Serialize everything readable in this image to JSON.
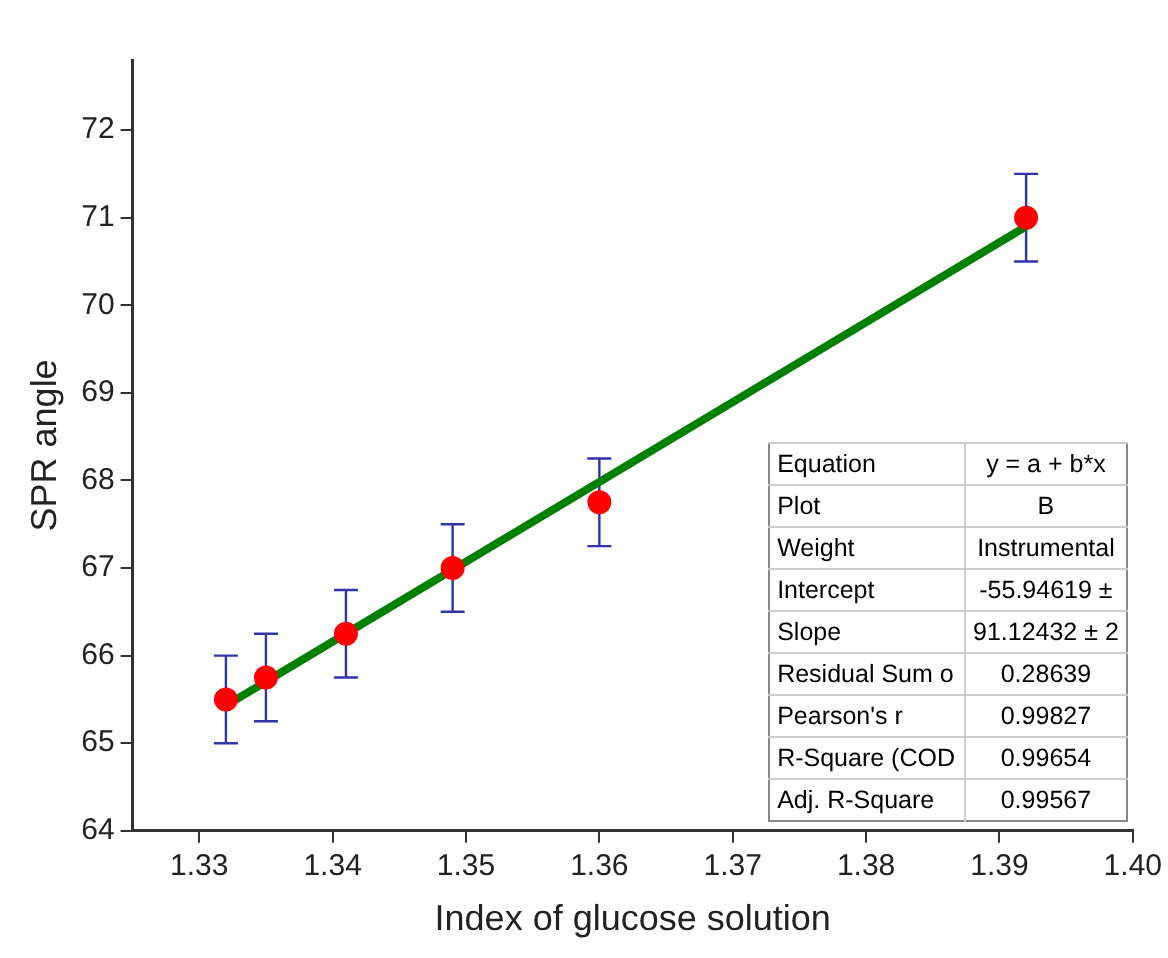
{
  "chart_data": {
    "type": "scatter",
    "xlabel": "Index of glucose solution",
    "ylabel": "SPR angle",
    "x": [
      1.332,
      1.335,
      1.341,
      1.349,
      1.36,
      1.392
    ],
    "series": [
      {
        "color": "#ff0000",
        "values": [
          65.5,
          65.75,
          66.25,
          67.0,
          67.75,
          71.0
        ],
        "errors": [
          0.5,
          0.5,
          0.5,
          0.5,
          0.5,
          0.5
        ]
      },
      {
        "type": "line",
        "marker": "none",
        "color": "#008000",
        "x": [
          1.332,
          1.392
        ],
        "values": [
          65.43,
          70.9
        ]
      }
    ],
    "xlim": [
      1.325,
      1.4
    ],
    "xticks": [
      1.33,
      1.34,
      1.35,
      1.36,
      1.37,
      1.38,
      1.39,
      {
        "value": 1.4,
        "label": "1.40"
      }
    ],
    "ylim": [
      64,
      72.8
    ],
    "yticks": [
      64,
      65,
      66,
      67,
      68,
      69,
      70,
      71,
      72
    ],
    "marker": "circle",
    "grid": false,
    "legend": false,
    "annotations": [
      "Equation",
      "y = a + b*x",
      "Plot",
      "B",
      "Weight",
      "Instrumental",
      "Intercept",
      "-55.94619 ±",
      "Slope",
      "91.12432 ± 2",
      "Residual Sum o",
      "0.28639",
      "Pearson's r",
      "0.99827",
      "R-Square (COD",
      "0.99654",
      "Adj. R-Square",
      "0.99567"
    ]
  }
}
